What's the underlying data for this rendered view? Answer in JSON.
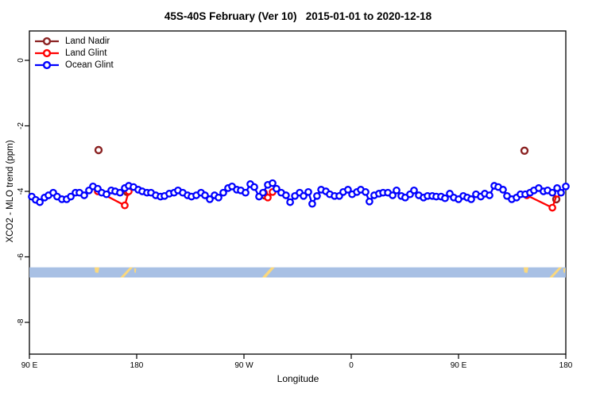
{
  "title": "45S-40S February (Ver 10)   2015-01-01 to 2020-12-18",
  "legend": [
    {
      "label": "Land Nadir",
      "color": "#8B2323"
    },
    {
      "label": "Land Glint",
      "color": "#FF0000"
    },
    {
      "label": "Ocean Glint",
      "color": "#0000FF"
    }
  ],
  "chart_data": {
    "type": "scatter",
    "title": "45S-40S February (Ver 10)   2015-01-01 to 2020-12-18",
    "xlabel": "Longitude",
    "ylabel": "XCO2 - MLO trend (ppm)",
    "x_axis": {
      "range": [
        90,
        540
      ],
      "ticks": [
        {
          "lon": 90,
          "label": "90 E"
        },
        {
          "lon": 180,
          "label": "180"
        },
        {
          "lon": 270,
          "label": "90 W"
        },
        {
          "lon": 360,
          "label": "0"
        },
        {
          "lon": 450,
          "label": "90 E"
        },
        {
          "lon": 540,
          "label": "180"
        }
      ]
    },
    "y_axis": {
      "range": [
        0,
        -8
      ],
      "ticks": [
        {
          "v": 0,
          "label": "0"
        },
        {
          "v": -2,
          "label": "-2"
        },
        {
          "v": -4,
          "label": "-4"
        },
        {
          "v": -6,
          "label": "-6"
        },
        {
          "v": -8,
          "label": "-8"
        }
      ]
    },
    "series": [
      {
        "name": "Land Nadir",
        "color": "#8B2323",
        "mode": "points",
        "marker_r": 4.0,
        "stroke_w": 2.4,
        "points": [
          [
            148,
            -2.74
          ],
          [
            172,
            -4.02
          ],
          [
            287.3,
            -4.12
          ],
          [
            505.3,
            -2.76
          ],
          [
            532,
            -4.24
          ]
        ]
      },
      {
        "name": "Land Glint",
        "color": "#FF0000",
        "mode": "lines+points",
        "marker_r": 3.7,
        "stroke_w": 2.3,
        "segments": [
          [
            [
              147.3,
              -4.0
            ],
            [
              170,
              -4.43
            ],
            [
              173.3,
              -4.0
            ]
          ],
          [
            [
              286.7,
              -4.04
            ],
            [
              290,
              -4.19
            ],
            [
              294,
              -4.02
            ]
          ],
          [
            [
              507.3,
              -4.12
            ],
            [
              528.7,
              -4.5
            ],
            [
              532.7,
              -4.07
            ]
          ]
        ]
      },
      {
        "name": "Ocean Glint",
        "color": "#0000FF",
        "mode": "lines+points",
        "marker_r": 3.7,
        "stroke_w": 2.3,
        "points": [
          [
            92,
            -4.16
          ],
          [
            95.3,
            -4.26
          ],
          [
            98.7,
            -4.33
          ],
          [
            102.7,
            -4.19
          ],
          [
            106,
            -4.12
          ],
          [
            110,
            -4.04
          ],
          [
            113.3,
            -4.16
          ],
          [
            117.3,
            -4.24
          ],
          [
            121.3,
            -4.24
          ],
          [
            124.7,
            -4.16
          ],
          [
            128.7,
            -4.04
          ],
          [
            132,
            -4.04
          ],
          [
            136,
            -4.12
          ],
          [
            140,
            -3.97
          ],
          [
            143.3,
            -3.85
          ],
          [
            147.3,
            -3.92
          ],
          [
            150.7,
            -4.04
          ],
          [
            154.7,
            -4.09
          ],
          [
            158.7,
            -3.97
          ],
          [
            162,
            -4.0
          ],
          [
            166,
            -4.04
          ],
          [
            170,
            -3.9
          ],
          [
            173.3,
            -3.83
          ],
          [
            177.3,
            -3.87
          ],
          [
            181.3,
            -3.95
          ],
          [
            184.7,
            -4.0
          ],
          [
            188.7,
            -4.04
          ],
          [
            192,
            -4.04
          ],
          [
            196,
            -4.12
          ],
          [
            200,
            -4.16
          ],
          [
            203.3,
            -4.14
          ],
          [
            207.3,
            -4.07
          ],
          [
            211.3,
            -4.04
          ],
          [
            214.7,
            -3.97
          ],
          [
            218.7,
            -4.04
          ],
          [
            222.7,
            -4.12
          ],
          [
            226,
            -4.16
          ],
          [
            230,
            -4.12
          ],
          [
            234,
            -4.04
          ],
          [
            237.3,
            -4.12
          ],
          [
            241.3,
            -4.24
          ],
          [
            245.3,
            -4.12
          ],
          [
            248.7,
            -4.19
          ],
          [
            252.7,
            -4.04
          ],
          [
            256.7,
            -3.9
          ],
          [
            260,
            -3.85
          ],
          [
            264,
            -3.95
          ],
          [
            267.3,
            -3.97
          ],
          [
            271.3,
            -4.04
          ],
          [
            275.3,
            -3.78
          ],
          [
            278.7,
            -3.87
          ],
          [
            282.7,
            -4.16
          ],
          [
            286,
            -4.04
          ],
          [
            290,
            -3.8
          ],
          [
            294,
            -3.75
          ],
          [
            297.3,
            -3.92
          ],
          [
            301.3,
            -4.04
          ],
          [
            305.3,
            -4.12
          ],
          [
            308.7,
            -4.33
          ],
          [
            312.7,
            -4.14
          ],
          [
            316.7,
            -4.04
          ],
          [
            320,
            -4.14
          ],
          [
            324,
            -4.02
          ],
          [
            327.3,
            -4.38
          ],
          [
            331.3,
            -4.14
          ],
          [
            334.7,
            -3.95
          ],
          [
            338.7,
            -4.0
          ],
          [
            342,
            -4.09
          ],
          [
            346,
            -4.14
          ],
          [
            350,
            -4.14
          ],
          [
            353.3,
            -4.02
          ],
          [
            357.3,
            -3.95
          ],
          [
            360.7,
            -4.09
          ],
          [
            364.7,
            -4.02
          ],
          [
            368,
            -3.95
          ],
          [
            372,
            -4.02
          ],
          [
            375.3,
            -4.31
          ],
          [
            379.3,
            -4.12
          ],
          [
            383.3,
            -4.07
          ],
          [
            386.7,
            -4.04
          ],
          [
            390.7,
            -4.04
          ],
          [
            394.7,
            -4.12
          ],
          [
            398,
            -3.97
          ],
          [
            402,
            -4.14
          ],
          [
            405.3,
            -4.19
          ],
          [
            409.3,
            -4.09
          ],
          [
            412.7,
            -3.97
          ],
          [
            416.7,
            -4.12
          ],
          [
            420.7,
            -4.19
          ],
          [
            424,
            -4.14
          ],
          [
            428,
            -4.14
          ],
          [
            431.3,
            -4.16
          ],
          [
            435.3,
            -4.16
          ],
          [
            438.7,
            -4.21
          ],
          [
            442.7,
            -4.07
          ],
          [
            446,
            -4.19
          ],
          [
            450,
            -4.24
          ],
          [
            454,
            -4.14
          ],
          [
            457.3,
            -4.19
          ],
          [
            460.7,
            -4.24
          ],
          [
            464.7,
            -4.09
          ],
          [
            468.7,
            -4.16
          ],
          [
            472,
            -4.07
          ],
          [
            476,
            -4.12
          ],
          [
            480,
            -3.83
          ],
          [
            483.3,
            -3.87
          ],
          [
            487.3,
            -3.95
          ],
          [
            490.7,
            -4.14
          ],
          [
            494.7,
            -4.24
          ],
          [
            498.7,
            -4.19
          ],
          [
            502,
            -4.09
          ],
          [
            506,
            -4.09
          ],
          [
            510,
            -4.04
          ],
          [
            513.3,
            -3.97
          ],
          [
            517.3,
            -3.9
          ],
          [
            521.3,
            -4.0
          ],
          [
            524.7,
            -3.97
          ],
          [
            528.7,
            -4.04
          ],
          [
            532.7,
            -3.9
          ],
          [
            536,
            -4.04
          ],
          [
            540,
            -3.85
          ]
        ]
      }
    ],
    "map_strip": {
      "ocean_color": "#A8C0E4",
      "land_color": "#FBD87C",
      "v_top": -6.32,
      "v_bottom": -6.63,
      "land_patches": [
        {
          "name": "tasmania",
          "poly": [
            [
              144.6,
              0
            ],
            [
              148.6,
              0
            ],
            [
              147.8,
              0.55
            ],
            [
              145.2,
              0.5
            ]
          ]
        },
        {
          "name": "new-zealand",
          "poly": [
            [
              166.2,
              1
            ],
            [
              169.0,
              1
            ],
            [
              176.8,
              0.0
            ],
            [
              174.2,
              0.0
            ]
          ]
        },
        {
          "name": "new-zealand-tip",
          "poly": [
            [
              177.8,
              0.1
            ],
            [
              179.6,
              0.1
            ],
            [
              179.2,
              0.55
            ],
            [
              178.2,
              0.5
            ]
          ]
        },
        {
          "name": "south-america",
          "poly": [
            [
              285.2,
              1
            ],
            [
              288.4,
              1
            ],
            [
              295.8,
              0
            ],
            [
              292.8,
              0
            ]
          ]
        },
        {
          "name": "tasmania-wrap",
          "poly": [
            [
              504.6,
              0
            ],
            [
              508.6,
              0
            ],
            [
              507.8,
              0.55
            ],
            [
              505.2,
              0.5
            ]
          ]
        },
        {
          "name": "new-zealand-wrap",
          "poly": [
            [
              526.2,
              1
            ],
            [
              529.0,
              1
            ],
            [
              536.8,
              0.0
            ],
            [
              534.2,
              0.0
            ]
          ]
        },
        {
          "name": "new-zealand-tip-wrap",
          "poly": [
            [
              537.8,
              0.1
            ],
            [
              539.6,
              0.1
            ],
            [
              539.2,
              0.55
            ],
            [
              538.2,
              0.5
            ]
          ]
        }
      ]
    }
  }
}
